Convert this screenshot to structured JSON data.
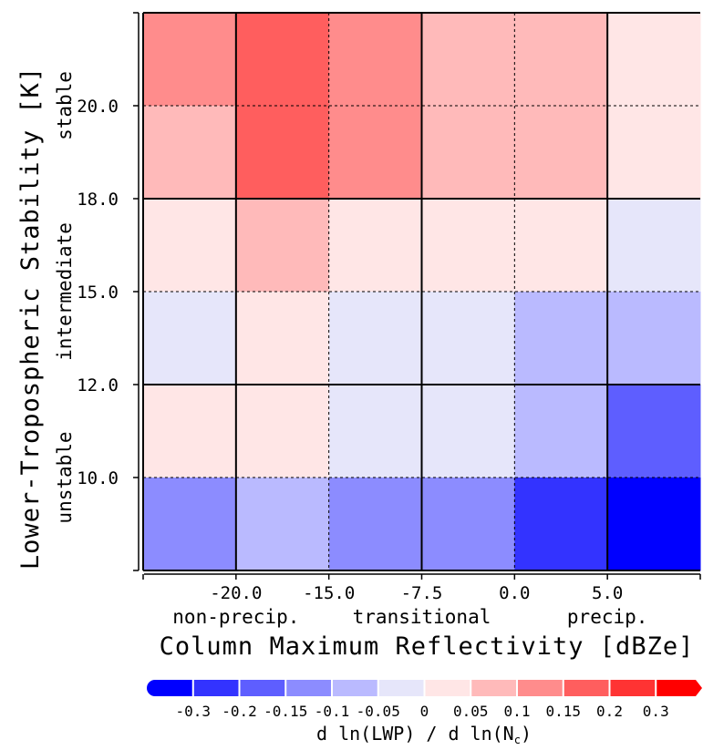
{
  "chart_data": {
    "type": "heatmap",
    "xlabel": "Column Maximum Reflectivity [dBZe]",
    "ylabel": "Lower-Tropospheric Stability [K]",
    "x_tick_labels": [
      "-20.0",
      "-15.0",
      "-7.5",
      "0.0",
      "5.0"
    ],
    "y_tick_labels": [
      "10.0",
      "12.0",
      "15.0",
      "18.0",
      "20.0"
    ],
    "x_regimes": [
      "non-precip.",
      "transitional",
      "precip."
    ],
    "y_regimes": [
      "unstable",
      "intermediate",
      "stable"
    ],
    "x_bins": [
      "< -20.0",
      "-20.0 to -15.0",
      "-15.0 to -7.5",
      "-7.5 to 0.0",
      "0.0 to 5.0",
      "> 5.0"
    ],
    "y_bins": [
      "> 20.0",
      "18.0 to 20.0",
      "15.0 to 18.0",
      "12.0 to 15.0",
      "10.0 to 12.0",
      "< 10.0"
    ],
    "values": [
      [
        0.125,
        0.175,
        0.125,
        0.075,
        0.075,
        0.025
      ],
      [
        0.075,
        0.175,
        0.125,
        0.075,
        0.075,
        0.025
      ],
      [
        0.025,
        0.075,
        0.025,
        0.025,
        0.025,
        -0.025
      ],
      [
        -0.025,
        0.025,
        -0.025,
        -0.025,
        -0.075,
        -0.075
      ],
      [
        0.025,
        0.025,
        -0.025,
        -0.025,
        -0.075,
        -0.175
      ],
      [
        -0.125,
        -0.075,
        -0.125,
        -0.125,
        -0.25,
        -0.35
      ]
    ],
    "colorbar": {
      "label_parts": [
        "d ln(LWP) / d ln(N",
        "c",
        ")"
      ],
      "tick_labels": [
        "-0.3",
        "-0.2",
        "-0.15",
        "-0.1",
        "-0.05",
        "0",
        "0.05",
        "0.1",
        "0.15",
        "0.2",
        "0.3"
      ],
      "bounds": [
        -0.3,
        -0.2,
        -0.15,
        -0.1,
        -0.05,
        0,
        0.05,
        0.1,
        0.15,
        0.2,
        0.3
      ],
      "colors": [
        "#0000ff",
        "#3333ff",
        "#5e5eff",
        "#8c8cff",
        "#babaff",
        "#e6e6fa",
        "#ffe6e6",
        "#ffbaba",
        "#ff8c8c",
        "#ff5e5e",
        "#ff3333",
        "#ff0000"
      ]
    }
  }
}
